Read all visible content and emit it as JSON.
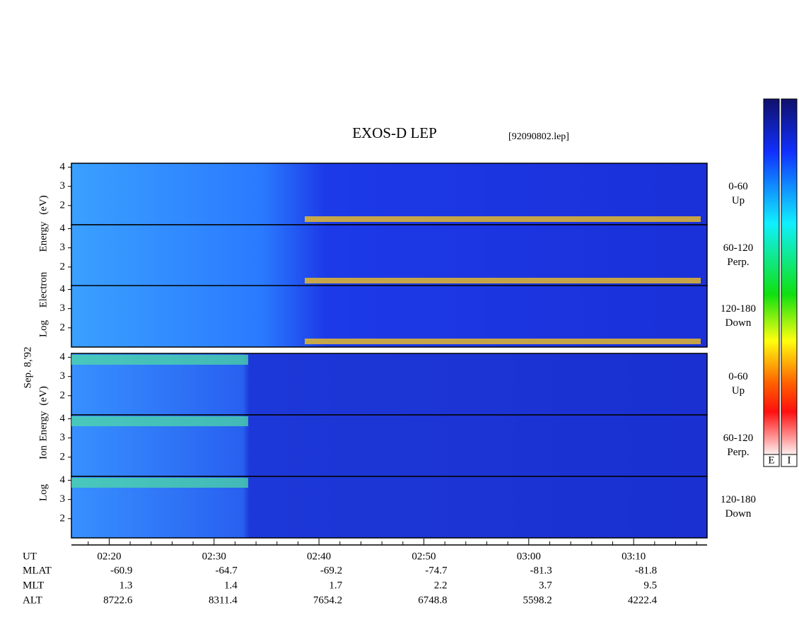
{
  "title": "EXOS-D LEP",
  "file": "[92090802.lep]",
  "chart_data": {
    "type": "spectrogram",
    "xlim": [
      136.4,
      197
    ],
    "xticks": [
      {
        "value": 140,
        "label": "02:20"
      },
      {
        "value": 150,
        "label": "02:30"
      },
      {
        "value": 160,
        "label": "02:40"
      },
      {
        "value": 170,
        "label": "02:50"
      },
      {
        "value": 180,
        "label": "03:00"
      },
      {
        "value": 190,
        "label": "03:10"
      }
    ],
    "xminorticks": [
      138,
      142,
      144,
      146,
      148,
      152,
      154,
      156,
      158,
      162,
      164,
      166,
      168,
      172,
      174,
      176,
      178,
      182,
      184,
      186,
      188,
      192,
      194,
      196
    ],
    "ylim": [
      1,
      4.2
    ],
    "yticks": [
      2,
      3,
      4
    ],
    "panels": [
      {
        "label": [
          "0-60",
          "Up"
        ]
      },
      {
        "label": [
          "60-120",
          "Perp."
        ]
      },
      {
        "label": [
          "120-180",
          "Down"
        ]
      },
      {
        "label": [
          "0-60",
          "Up"
        ]
      },
      {
        "label": [
          "60-120",
          "Perp."
        ]
      },
      {
        "label": [
          "120-180",
          "Down"
        ]
      }
    ],
    "electron_axis_label": [
      "Log",
      "Electron",
      "Energy",
      "(eV)"
    ],
    "ion_axis_label": [
      "Log",
      "Ion",
      "Energy",
      "(eV)"
    ],
    "date": "Sep. 8,'92",
    "ephemeris": {
      "labels": [
        "UT",
        "MLAT",
        "MLT",
        "ALT"
      ],
      "rows": [
        [
          -60.9,
          -64.7,
          -69.2,
          -74.7,
          -81.3,
          -81.8
        ],
        [
          1.3,
          1.4,
          1.7,
          2.2,
          3.7,
          9.5
        ],
        [
          8722.6,
          8311.4,
          7654.2,
          6748.8,
          5598.2,
          4222.4
        ]
      ]
    },
    "colorbars": [
      "E",
      "I"
    ]
  }
}
